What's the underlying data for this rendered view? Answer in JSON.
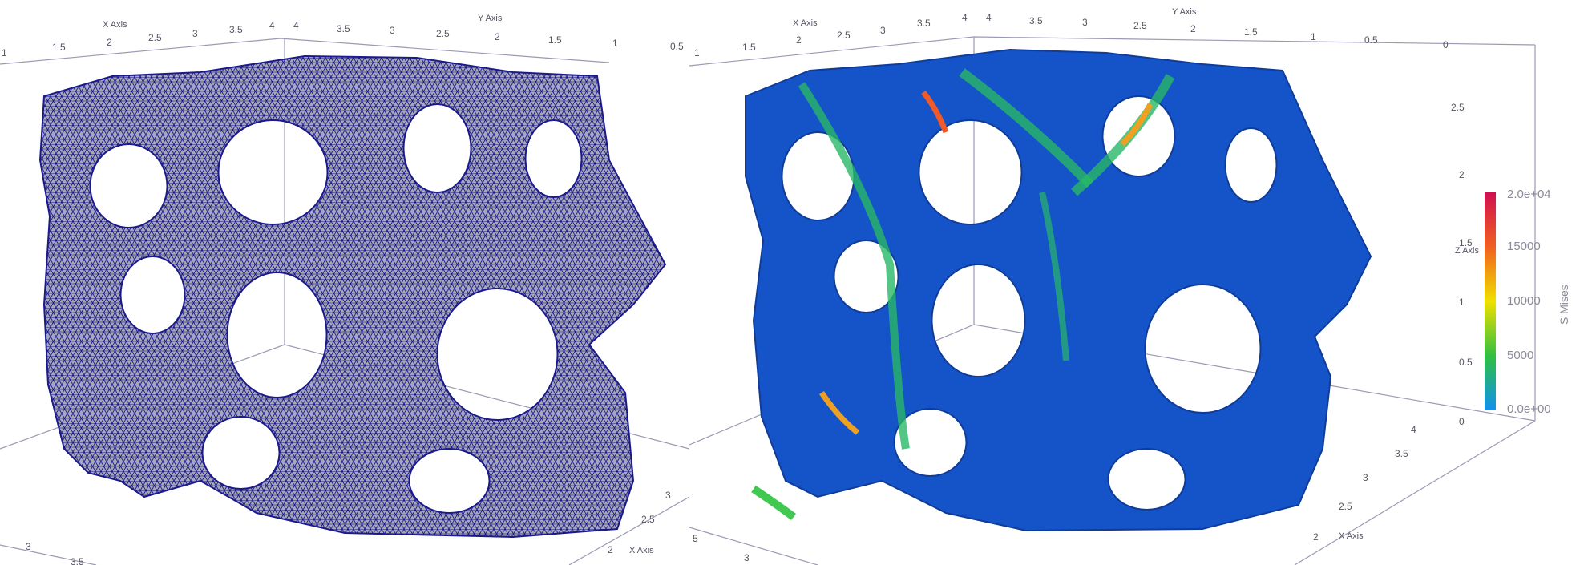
{
  "left_view": {
    "x_axis": {
      "title": "X Axis",
      "ticks": [
        "1",
        "1.5",
        "2",
        "2.5",
        "3",
        "3.5",
        "4"
      ]
    },
    "y_axis": {
      "title": "Y Axis",
      "ticks": [
        "4",
        "3.5",
        "3",
        "2.5",
        "2",
        "1.5",
        "1",
        "0.5"
      ]
    },
    "bottom_axis": {
      "title": "X Axis",
      "ticks": [
        "3",
        "2.5",
        "2"
      ]
    },
    "front_ticks": [
      "3",
      "3.5"
    ]
  },
  "right_view": {
    "x_axis": {
      "title": "X Axis",
      "ticks": [
        "1",
        "1.5",
        "2",
        "2.5",
        "3",
        "3.5",
        "4"
      ]
    },
    "y_axis": {
      "title": "Y Axis",
      "ticks": [
        "4",
        "3.5",
        "3",
        "2.5",
        "2",
        "1.5",
        "1",
        "0.5",
        "0"
      ]
    },
    "z_axis": {
      "title": "Z Axis",
      "ticks": [
        "2.5",
        "2",
        "1.5",
        "1",
        "0.5",
        "0"
      ]
    },
    "bottom_axis": {
      "title": "X Axis",
      "ticks": [
        "4",
        "3.5",
        "3",
        "2.5",
        "2"
      ]
    },
    "front_ticks": [
      "5",
      "3"
    ]
  },
  "colorbar": {
    "title": "S Mises",
    "labels": [
      "2.0e+04",
      "15000",
      "10000",
      "5000",
      "0.0e+00"
    ],
    "colors": [
      "#d01050",
      "#f06020",
      "#f0e000",
      "#30c040",
      "#1090f0"
    ]
  },
  "colors": {
    "wire": "#1a1a8c",
    "gray_fill": "#a8a8b4",
    "stress_low": "#1553c8",
    "stress_mid": "#28b868",
    "stress_high": "#f05a28"
  }
}
